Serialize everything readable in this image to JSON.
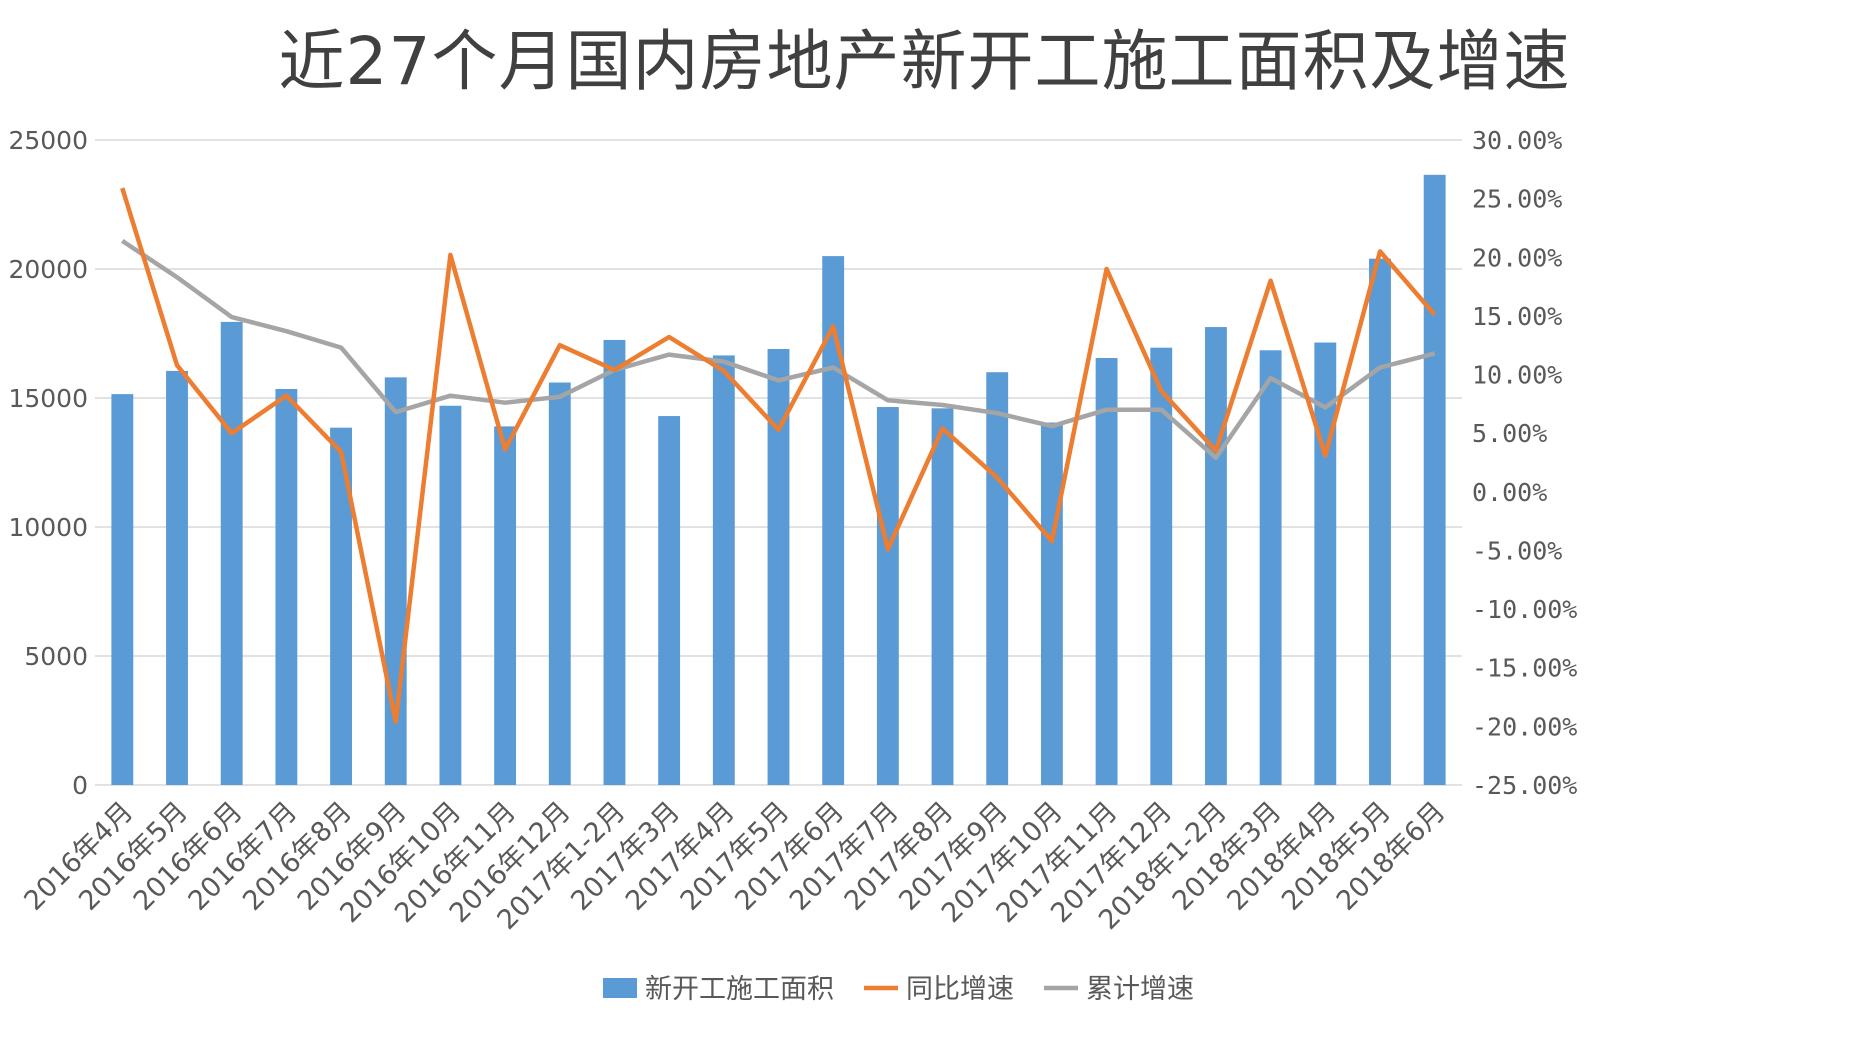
{
  "chart_data": {
    "type": "bar",
    "title": "近27个月国内房地产新开工施工面积及增速",
    "categories": [
      "2016年4月",
      "2016年5月",
      "2016年6月",
      "2016年7月",
      "2016年8月",
      "2016年9月",
      "2016年10月",
      "2016年11月",
      "2016年12月",
      "2017年1-2月",
      "2017年3月",
      "2017年4月",
      "2017年5月",
      "2017年6月",
      "2017年7月",
      "2017年8月",
      "2017年9月",
      "2017年10月",
      "2017年11月",
      "2017年12月",
      "2018年1-2月",
      "2018年3月",
      "2018年4月",
      "2018年5月",
      "2018年6月"
    ],
    "series": [
      {
        "name": "新开工施工面积",
        "kind": "bar",
        "axis": "left",
        "color": "#5b9bd5",
        "values": [
          15150,
          16050,
          17950,
          15350,
          13850,
          15800,
          14700,
          13900,
          15600,
          17250,
          14300,
          16650,
          16900,
          20500,
          14650,
          14600,
          16000,
          14050,
          16550,
          16950,
          17750,
          16850,
          17150,
          20400,
          23650
        ]
      },
      {
        "name": "同比增速",
        "kind": "line",
        "axis": "right",
        "color": "#ed7d31",
        "values": [
          25.9,
          10.8,
          5.0,
          8.2,
          3.4,
          -19.6,
          20.2,
          3.6,
          12.5,
          10.4,
          13.2,
          10.3,
          5.3,
          14.1,
          -4.9,
          5.4,
          1.2,
          -4.2,
          19.0,
          8.6,
          3.5,
          18.0,
          3.1,
          20.5,
          15.1
        ]
      },
      {
        "name": "累计增速",
        "kind": "line",
        "axis": "right",
        "color": "#a5a5a5",
        "values": [
          21.4,
          18.3,
          14.9,
          13.7,
          12.3,
          6.8,
          8.2,
          7.6,
          8.1,
          10.4,
          11.7,
          11.1,
          9.5,
          10.6,
          7.8,
          7.4,
          6.7,
          5.6,
          7.0,
          7.0,
          2.9,
          9.7,
          7.2,
          10.6,
          11.8
        ]
      }
    ],
    "left_axis": {
      "min": 0,
      "max": 25000,
      "ticks": [
        "0",
        "5000",
        "10000",
        "15000",
        "20000",
        "25000"
      ]
    },
    "right_axis": {
      "min": -25,
      "max": 30,
      "ticks": [
        "-25.00%",
        "-20.00%",
        "-15.00%",
        "-10.00%",
        "-5.00%",
        "0.00%",
        "5.00%",
        "10.00%",
        "15.00%",
        "20.00%",
        "25.00%",
        "30.00%"
      ]
    },
    "grid": true,
    "legend_position": "bottom"
  }
}
